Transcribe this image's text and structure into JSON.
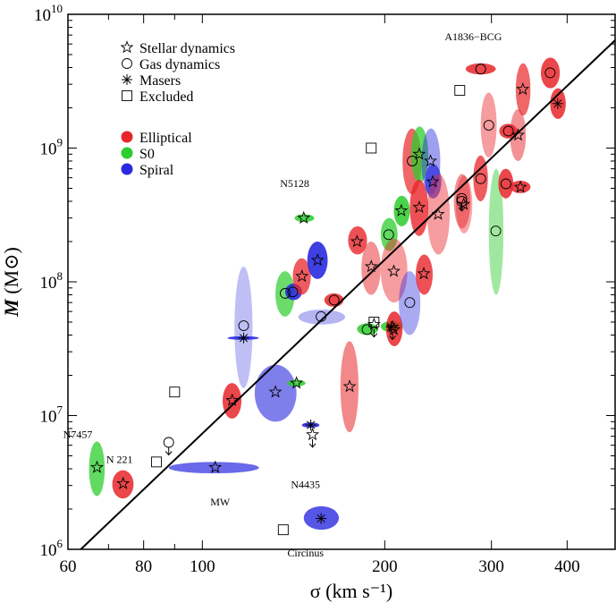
{
  "chart_data": {
    "type": "scatter",
    "title": "",
    "xlabel": "σ (km s⁻¹)",
    "ylabel": "M (M⊙)",
    "x_scale": "log",
    "y_scale": "log",
    "xlim": [
      60,
      480
    ],
    "ylim": [
      1000000,
      10000000000
    ],
    "x_ticks": [
      {
        "value": 60,
        "label": "60"
      },
      {
        "value": 80,
        "label": "80"
      },
      {
        "value": 100,
        "label": "100"
      },
      {
        "value": 200,
        "label": "200"
      },
      {
        "value": 300,
        "label": "300"
      },
      {
        "value": 400,
        "label": "400"
      }
    ],
    "y_ticks": [
      {
        "value": 1000000,
        "base": "10",
        "exp": "6"
      },
      {
        "value": 10000000,
        "base": "10",
        "exp": "7"
      },
      {
        "value": 100000000,
        "base": "10",
        "exp": "8"
      },
      {
        "value": 1000000000,
        "base": "10",
        "exp": "9"
      },
      {
        "value": 10000000000,
        "base": "10",
        "exp": "10"
      }
    ],
    "fit_line": {
      "x": [
        63,
        480
      ],
      "y": [
        1000000,
        6400000000
      ]
    },
    "colors": {
      "Elliptical": "#e8262a",
      "S0": "#2ccd2c",
      "Spiral": "#2a2ae0",
      "line": "#000000"
    },
    "legend": {
      "position": "top-left",
      "markers": [
        {
          "symbol": "star",
          "label": "Stellar dynamics"
        },
        {
          "symbol": "circle",
          "label": "Gas dynamics"
        },
        {
          "symbol": "asterisk",
          "label": "Masers"
        },
        {
          "symbol": "square",
          "label": "Excluded"
        }
      ],
      "types": [
        {
          "label": "Elliptical",
          "color": "#e8262a"
        },
        {
          "label": "S0",
          "color": "#2ccd2c"
        },
        {
          "label": "Spiral",
          "color": "#2a2ae0"
        }
      ]
    },
    "annotations": [
      {
        "text": "A1836−BCG",
        "x": 280,
        "y": 5000000000
      },
      {
        "text": "N5128",
        "x": 142,
        "y": 400000000
      },
      {
        "text": "N7457",
        "x": 64,
        "y": 5500000
      },
      {
        "text": "N 221",
        "x": 73,
        "y": 3900000
      },
      {
        "text": "MW",
        "x": 107,
        "y": 2800000
      },
      {
        "text": "N4435",
        "x": 148,
        "y": 3800000
      },
      {
        "text": "Circinus",
        "x": 148,
        "y": 1200000
      }
    ],
    "points": [
      {
        "type": "Elliptical",
        "method": "star",
        "sigma": 74,
        "mass": 3100000,
        "s_lo": 71,
        "s_hi": 77,
        "m_lo": 2400000,
        "m_hi": 3900000,
        "alpha": 0.85
      },
      {
        "type": "S0",
        "method": "star",
        "sigma": 67,
        "mass": 4100000,
        "s_lo": 65,
        "s_hi": 69,
        "m_lo": 2500000,
        "m_hi": 6400000,
        "alpha": 0.75
      },
      {
        "type": "Spiral",
        "method": "star",
        "sigma": 105,
        "mass": 4100000,
        "s_lo": 88,
        "s_hi": 124,
        "m_lo": 3700000,
        "m_hi": 4500000,
        "alpha": 0.7
      },
      {
        "type": "Spiral",
        "method": "asterisk",
        "sigma": 157,
        "mass": 1700000,
        "s_lo": 147,
        "s_hi": 168,
        "m_lo": 1400000,
        "m_hi": 2100000,
        "alpha": 0.8
      },
      {
        "type": "Spiral",
        "method": "asterisk",
        "sigma": 151,
        "mass": 8500000,
        "s_lo": 146,
        "s_hi": 156,
        "m_lo": 8100000,
        "m_hi": 8900000,
        "alpha": 0.9
      },
      {
        "type": "Spiral",
        "method": "star",
        "sigma": 132,
        "mass": 15000000,
        "s_lo": 122,
        "s_hi": 143,
        "m_lo": 9000000,
        "m_hi": 24000000,
        "alpha": 0.6
      },
      {
        "type": "Elliptical",
        "method": "star",
        "sigma": 112,
        "mass": 13000000,
        "s_lo": 108,
        "s_hi": 116,
        "m_lo": 9500000,
        "m_hi": 17500000,
        "alpha": 0.85
      },
      {
        "type": "S0",
        "method": "star",
        "sigma": 143,
        "mass": 17500000,
        "s_lo": 138,
        "s_hi": 148,
        "m_lo": 16500000,
        "m_hi": 18500000,
        "alpha": 0.85
      },
      {
        "type": "Spiral",
        "method": "asterisk",
        "sigma": 117,
        "mass": 38000000,
        "s_lo": 110,
        "s_hi": 124,
        "m_lo": 37000000,
        "m_hi": 39000000,
        "alpha": 0.9
      },
      {
        "type": "Spiral",
        "method": "circle",
        "sigma": 117,
        "mass": 47000000,
        "s_lo": 113,
        "s_hi": 121,
        "m_lo": 16000000,
        "m_hi": 130000000,
        "alpha": 0.3
      },
      {
        "type": "Elliptical",
        "method": "star",
        "sigma": 175,
        "mass": 16500000,
        "s_lo": 169,
        "s_hi": 181,
        "m_lo": 7500000,
        "m_hi": 36000000,
        "alpha": 0.55
      },
      {
        "type": "S0",
        "method": "star",
        "sigma": 147,
        "mass": 300000000,
        "s_lo": 142,
        "s_hi": 153,
        "m_lo": 280000000,
        "m_hi": 320000000,
        "alpha": 0.85
      },
      {
        "type": "S0",
        "method": "circle",
        "sigma": 137,
        "mass": 82000000,
        "s_lo": 132,
        "s_hi": 142,
        "m_lo": 55000000,
        "m_hi": 120000000,
        "alpha": 0.7
      },
      {
        "type": "Spiral",
        "method": "circle",
        "sigma": 141,
        "mass": 84000000,
        "s_lo": 137,
        "s_hi": 146,
        "m_lo": 73000000,
        "m_hi": 97000000,
        "alpha": 0.9
      },
      {
        "type": "Elliptical",
        "method": "star",
        "sigma": 146,
        "mass": 110000000,
        "s_lo": 141,
        "s_hi": 151,
        "m_lo": 80000000,
        "m_hi": 150000000,
        "alpha": 0.75
      },
      {
        "type": "Spiral",
        "method": "star",
        "sigma": 155,
        "mass": 145000000,
        "s_lo": 149,
        "s_hi": 161,
        "m_lo": 105000000,
        "m_hi": 200000000,
        "alpha": 0.9
      },
      {
        "type": "Spiral",
        "method": "circle",
        "sigma": 157,
        "mass": 55000000,
        "s_lo": 144,
        "s_hi": 172,
        "m_lo": 48000000,
        "m_hi": 62000000,
        "alpha": 0.35
      },
      {
        "type": "Elliptical",
        "method": "circle",
        "sigma": 165,
        "mass": 73000000,
        "s_lo": 159,
        "s_hi": 171,
        "m_lo": 65000000,
        "m_hi": 82000000,
        "alpha": 0.85
      },
      {
        "type": "Elliptical",
        "method": "star",
        "sigma": 180,
        "mass": 200000000,
        "s_lo": 174,
        "s_hi": 187,
        "m_lo": 160000000,
        "m_hi": 260000000,
        "alpha": 0.8
      },
      {
        "type": "Elliptical",
        "method": "star",
        "sigma": 190,
        "mass": 130000000,
        "s_lo": 183,
        "s_hi": 197,
        "m_lo": 80000000,
        "m_hi": 200000000,
        "alpha": 0.5
      },
      {
        "type": "S0",
        "method": "circle",
        "sigma": 187,
        "mass": 44000000,
        "s_lo": 180,
        "s_hi": 195,
        "m_lo": 40000000,
        "m_hi": 49000000,
        "alpha": 0.85
      },
      {
        "type": "S0",
        "method": "asterisk",
        "sigma": 205,
        "mass": 46000000,
        "s_lo": 197,
        "s_hi": 214,
        "m_lo": 42000000,
        "m_hi": 51000000,
        "alpha": 0.85
      },
      {
        "type": "Elliptical",
        "method": "star",
        "sigma": 207,
        "mass": 44000000,
        "s_lo": 201,
        "s_hi": 214,
        "m_lo": 33000000,
        "m_hi": 60000000,
        "alpha": 0.85
      },
      {
        "type": "S0",
        "method": "circle",
        "sigma": 203,
        "mass": 225000000,
        "s_lo": 197,
        "s_hi": 210,
        "m_lo": 170000000,
        "m_hi": 300000000,
        "alpha": 0.75
      },
      {
        "type": "Elliptical",
        "method": "star",
        "sigma": 207,
        "mass": 120000000,
        "s_lo": 197,
        "s_hi": 218,
        "m_lo": 70000000,
        "m_hi": 210000000,
        "alpha": 0.45
      },
      {
        "type": "Spiral",
        "method": "circle",
        "sigma": 220,
        "mass": 70000000,
        "s_lo": 211,
        "s_hi": 229,
        "m_lo": 40000000,
        "m_hi": 120000000,
        "alpha": 0.4
      },
      {
        "type": "S0",
        "method": "star",
        "sigma": 213,
        "mass": 340000000,
        "s_lo": 207,
        "s_hi": 220,
        "m_lo": 260000000,
        "m_hi": 440000000,
        "alpha": 0.85
      },
      {
        "type": "Elliptical",
        "method": "star",
        "sigma": 232,
        "mass": 115000000,
        "s_lo": 225,
        "s_hi": 240,
        "m_lo": 80000000,
        "m_hi": 160000000,
        "alpha": 0.8
      },
      {
        "type": "Elliptical",
        "method": "circle",
        "sigma": 222,
        "mass": 800000000,
        "s_lo": 214,
        "s_hi": 230,
        "m_lo": 450000000,
        "m_hi": 1400000000,
        "alpha": 0.7
      },
      {
        "type": "S0",
        "method": "star",
        "sigma": 228,
        "mass": 900000000,
        "s_lo": 221,
        "s_hi": 236,
        "m_lo": 550000000,
        "m_hi": 1450000000,
        "alpha": 0.75
      },
      {
        "type": "Spiral",
        "method": "star",
        "sigma": 238,
        "mass": 800000000,
        "s_lo": 230,
        "s_hi": 247,
        "m_lo": 450000000,
        "m_hi": 1400000000,
        "alpha": 0.45
      },
      {
        "type": "Elliptical",
        "method": "star",
        "sigma": 228,
        "mass": 360000000,
        "s_lo": 220,
        "s_hi": 236,
        "m_lo": 220000000,
        "m_hi": 580000000,
        "alpha": 0.8
      },
      {
        "type": "Spiral",
        "method": "star",
        "sigma": 240,
        "mass": 560000000,
        "s_lo": 233,
        "s_hi": 248,
        "m_lo": 420000000,
        "m_hi": 760000000,
        "alpha": 0.7
      },
      {
        "type": "Elliptical",
        "method": "star",
        "sigma": 245,
        "mass": 320000000,
        "s_lo": 235,
        "s_hi": 256,
        "m_lo": 160000000,
        "m_hi": 640000000,
        "alpha": 0.45
      },
      {
        "type": "Elliptical",
        "method": "circle",
        "sigma": 268,
        "mass": 400000000,
        "s_lo": 260,
        "s_hi": 277,
        "m_lo": 250000000,
        "m_hi": 640000000,
        "alpha": 0.5
      },
      {
        "type": "Elliptical",
        "method": "star",
        "sigma": 270,
        "mass": 380000000,
        "s_lo": 262,
        "s_hi": 279,
        "m_lo": 230000000,
        "m_hi": 620000000,
        "alpha": 0.4
      },
      {
        "type": "S0",
        "method": "circle",
        "sigma": 305,
        "mass": 240000000,
        "s_lo": 297,
        "s_hi": 314,
        "m_lo": 80000000,
        "m_hi": 700000000,
        "alpha": 0.45
      },
      {
        "type": "Elliptical",
        "method": "circle",
        "sigma": 288,
        "mass": 590000000,
        "s_lo": 280,
        "s_hi": 296,
        "m_lo": 400000000,
        "m_hi": 880000000,
        "alpha": 0.75
      },
      {
        "type": "Elliptical",
        "method": "circle",
        "sigma": 297,
        "mass": 1480000000,
        "s_lo": 288,
        "s_hi": 306,
        "m_lo": 850000000,
        "m_hi": 2600000000,
        "alpha": 0.45
      },
      {
        "type": "Elliptical",
        "method": "circle",
        "sigma": 317,
        "mass": 540000000,
        "s_lo": 308,
        "s_hi": 326,
        "m_lo": 420000000,
        "m_hi": 700000000,
        "alpha": 0.85
      },
      {
        "type": "Elliptical",
        "method": "star",
        "sigma": 335,
        "mass": 510000000,
        "s_lo": 322,
        "s_hi": 348,
        "m_lo": 460000000,
        "m_hi": 570000000,
        "alpha": 0.85
      },
      {
        "type": "Elliptical",
        "method": "circle",
        "sigma": 320,
        "mass": 1340000000,
        "s_lo": 309,
        "s_hi": 331,
        "m_lo": 1180000000,
        "m_hi": 1520000000,
        "alpha": 0.85
      },
      {
        "type": "Elliptical",
        "method": "star",
        "sigma": 332,
        "mass": 1250000000,
        "s_lo": 322,
        "s_hi": 342,
        "m_lo": 800000000,
        "m_hi": 1950000000,
        "alpha": 0.5
      },
      {
        "type": "Elliptical",
        "method": "star",
        "sigma": 338,
        "mass": 2750000000,
        "s_lo": 329,
        "s_hi": 348,
        "m_lo": 1750000000,
        "m_hi": 4300000000,
        "alpha": 0.7
      },
      {
        "type": "Elliptical",
        "method": "circle",
        "sigma": 288,
        "mass": 3900000000,
        "s_lo": 272,
        "s_hi": 305,
        "m_lo": 3550000000,
        "m_hi": 4300000000,
        "alpha": 0.85
      },
      {
        "type": "Elliptical",
        "method": "circle",
        "sigma": 375,
        "mass": 3650000000,
        "s_lo": 362,
        "s_hi": 389,
        "m_lo": 2800000000,
        "m_hi": 4750000000,
        "alpha": 0.85
      },
      {
        "type": "Elliptical",
        "method": "asterisk",
        "sigma": 386,
        "mass": 2150000000,
        "s_lo": 375,
        "s_hi": 398,
        "m_lo": 1650000000,
        "m_hi": 2800000000,
        "alpha": 0.85
      }
    ],
    "excluded": [
      {
        "sigma": 90,
        "mass": 15000000
      },
      {
        "sigma": 84,
        "mass": 4500000
      },
      {
        "sigma": 136,
        "mass": 1400000
      },
      {
        "sigma": 190,
        "mass": 1000000000
      },
      {
        "sigma": 192,
        "mass": 50000000
      },
      {
        "sigma": 266,
        "mass": 2700000000
      }
    ],
    "upper_limits": [
      {
        "method": "circle",
        "sigma": 88,
        "mass": 6300000
      },
      {
        "method": "star",
        "sigma": 152,
        "mass": 7200000
      },
      {
        "method": "star",
        "sigma": 192,
        "mass": 48000000
      },
      {
        "method": "star",
        "sigma": 206,
        "mass": 46000000
      },
      {
        "method": "circle",
        "sigma": 268,
        "mass": 420000000
      }
    ]
  }
}
